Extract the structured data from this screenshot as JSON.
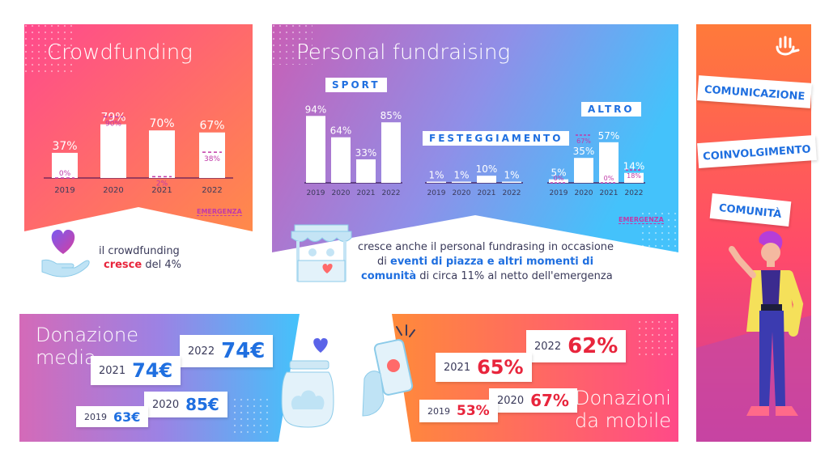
{
  "colors": {
    "coral": "#ff7a5a",
    "pink": "#ff4a88",
    "purple": "#b36bd6",
    "sky": "#4ec1fa",
    "magenta": "#d43fa0",
    "red": "#e8253c",
    "blue": "#1f6fe0",
    "dark": "#2b2b5e"
  },
  "crowdfunding": {
    "title": "Crowdfunding",
    "emergenza_label": "EMERGENZA",
    "caption_line1": "il crowdfunding",
    "caption_bold": "cresce",
    "caption_rest": " del 4%"
  },
  "personal": {
    "title": "Personal fundraising",
    "emergenza_label": "EMERGENZA",
    "caption_line1": "cresce anche il personal fundrasing in occasione",
    "caption_line2_pre": "di ",
    "caption_line2_bold": "eventi di piazza e altri momenti di",
    "caption_line3_bold": "comunità",
    "caption_line3_rest": " di circa 11% al netto dell'emergenza"
  },
  "donazione": {
    "title_line1": "Donazione",
    "title_line2": "media",
    "bubbles": [
      {
        "year": "2022",
        "value": "74€"
      },
      {
        "year": "2021",
        "value": "74€"
      },
      {
        "year": "2020",
        "value": "85€"
      },
      {
        "year": "2019",
        "value": "63€"
      }
    ]
  },
  "mobile": {
    "title_line1": "Donazioni",
    "title_line2": "da mobile",
    "bubbles": [
      {
        "year": "2022",
        "value": "62%"
      },
      {
        "year": "2021",
        "value": "65%"
      },
      {
        "year": "2020",
        "value": "67%"
      },
      {
        "year": "2019",
        "value": "53%"
      }
    ]
  },
  "community": {
    "tags": [
      "COMUNICAZIONE",
      "COINVOLGIMENTO",
      "COMUNITÀ"
    ]
  },
  "chart_data": [
    {
      "type": "bar",
      "title": "Crowdfunding",
      "categories": [
        "2019",
        "2020",
        "2021",
        "2022"
      ],
      "values": [
        37,
        79,
        70,
        67
      ],
      "emergenza": [
        0,
        90,
        2,
        38
      ],
      "value_labels": [
        "37%",
        "79%",
        "70%",
        "67%"
      ],
      "emergenza_labels": [
        "0%",
        "90%",
        "2%",
        "38%"
      ],
      "ylim": [
        0,
        100
      ]
    },
    {
      "type": "bar",
      "title": "Personal fundraising",
      "groups": [
        {
          "label": "SPORT",
          "categories": [
            "2019",
            "2020",
            "2021",
            "2022"
          ],
          "values": [
            94,
            64,
            33,
            85
          ],
          "value_labels": [
            "94%",
            "64%",
            "33%",
            "85%"
          ]
        },
        {
          "label": "FESTEGGIAMENTO",
          "categories": [
            "2019",
            "2020",
            "2021",
            "2022"
          ],
          "values": [
            1,
            1,
            10,
            1
          ],
          "value_labels": [
            "1%",
            "1%",
            "10%",
            "1%"
          ]
        },
        {
          "label": "ALTRO",
          "categories": [
            "2019",
            "2020",
            "2021",
            "2022"
          ],
          "values": [
            5,
            35,
            57,
            14
          ],
          "value_labels": [
            "5%",
            "35%",
            "57%",
            "14%"
          ],
          "emergenza": [
            0,
            67,
            0,
            18
          ],
          "emergenza_labels": [
            "0%",
            "67%",
            "0%",
            "18%"
          ]
        }
      ],
      "ylim": [
        0,
        100
      ]
    }
  ]
}
